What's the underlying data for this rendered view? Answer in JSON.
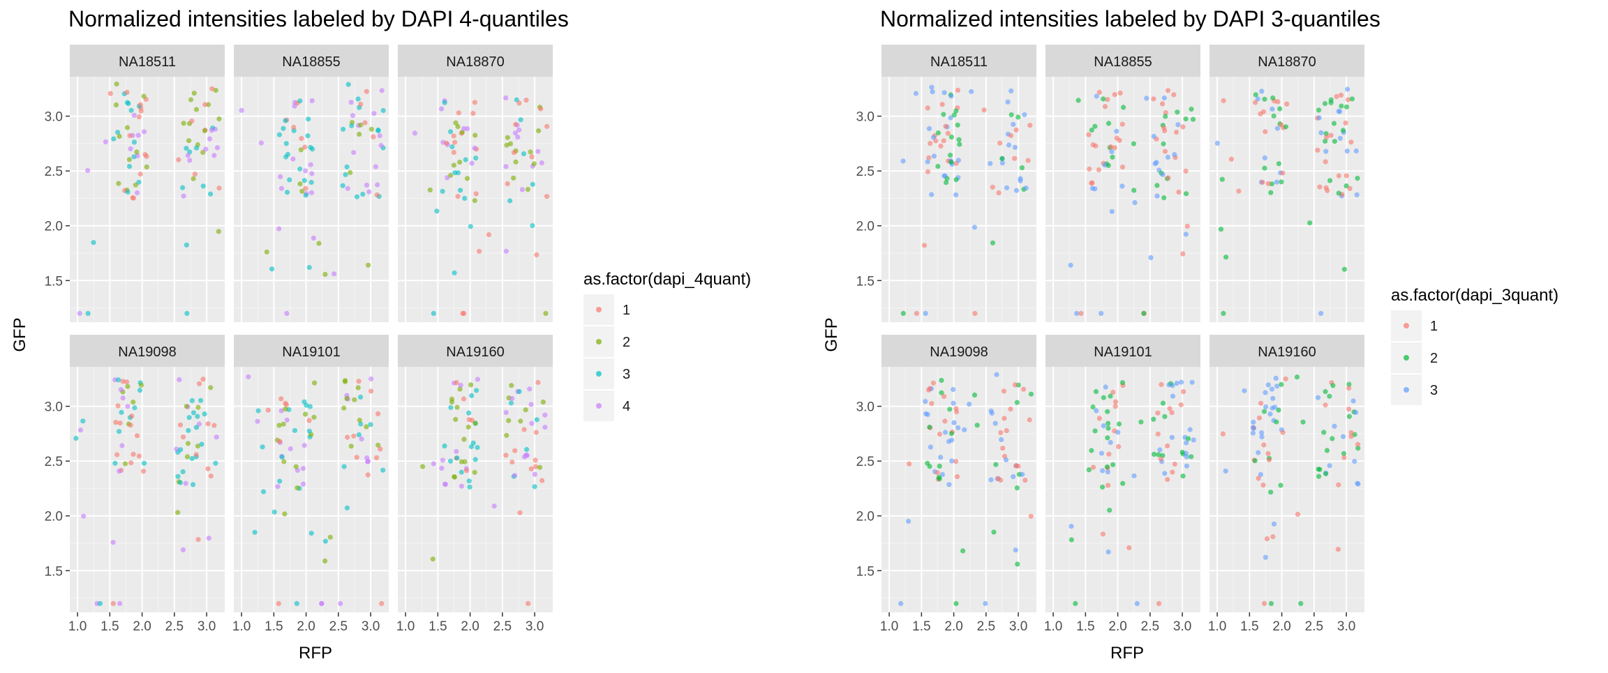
{
  "figure": {
    "panels": [
      {
        "title": "Normalized intensities labeled by DAPI 4-quantiles",
        "legend_title": "as.factor(dapi_4quant)",
        "legend_levels": [
          "1",
          "2",
          "3",
          "4"
        ]
      },
      {
        "title": "Normalized intensities labeled by DAPI 3-quantiles",
        "legend_title": "as.factor(dapi_3quant)",
        "legend_levels": [
          "1",
          "2",
          "3"
        ]
      }
    ],
    "facet_labels": [
      "NA18511",
      "NA18855",
      "NA18870",
      "NA19098",
      "NA19101",
      "NA19160"
    ],
    "xlabel": "RFP",
    "ylabel": "GFP",
    "x_ticks": [
      "1.0",
      "1.5",
      "2.0",
      "2.5",
      "3.0"
    ],
    "y_ticks": [
      "1.5",
      "2.0",
      "2.5",
      "3.0"
    ]
  },
  "chart_data": [
    {
      "type": "scatter",
      "title": "Normalized intensities labeled by DAPI 4-quantiles",
      "xlabel": "RFP",
      "ylabel": "GFP",
      "xlim": [
        0.88,
        3.28
      ],
      "ylim": [
        1.12,
        3.36
      ],
      "x_ticks": [
        1.0,
        1.5,
        2.0,
        2.5,
        3.0
      ],
      "y_ticks": [
        1.5,
        2.0,
        2.5,
        3.0
      ],
      "grid": true,
      "legend_position": "right",
      "legend_title": "as.factor(dapi_4quant)",
      "color_levels": [
        "1",
        "2",
        "3",
        "4"
      ],
      "colors": [
        "#F8766D",
        "#7CAE00",
        "#00BFC4",
        "#C77CFF"
      ],
      "facets": [
        "NA18511",
        "NA18855",
        "NA18870",
        "NA19098",
        "NA19101",
        "NA19160"
      ],
      "points_per_facet_approx": 90,
      "note_values": "individual points estimated; clusters near RFP 1.6-2.0 and 2.6-3.1, GFP 2.3-3.2"
    },
    {
      "type": "scatter",
      "title": "Normalized intensities labeled by DAPI 3-quantiles",
      "xlabel": "RFP",
      "ylabel": "GFP",
      "xlim": [
        0.88,
        3.28
      ],
      "ylim": [
        1.12,
        3.36
      ],
      "x_ticks": [
        1.0,
        1.5,
        2.0,
        2.5,
        3.0
      ],
      "y_ticks": [
        1.5,
        2.0,
        2.5,
        3.0
      ],
      "grid": true,
      "legend_position": "right",
      "legend_title": "as.factor(dapi_3quant)",
      "color_levels": [
        "1",
        "2",
        "3"
      ],
      "colors": [
        "#F8766D",
        "#00BA38",
        "#619CFF"
      ],
      "facets": [
        "NA18511",
        "NA18855",
        "NA18870",
        "NA19098",
        "NA19101",
        "NA19160"
      ],
      "points_per_facet_approx": 90
    }
  ]
}
